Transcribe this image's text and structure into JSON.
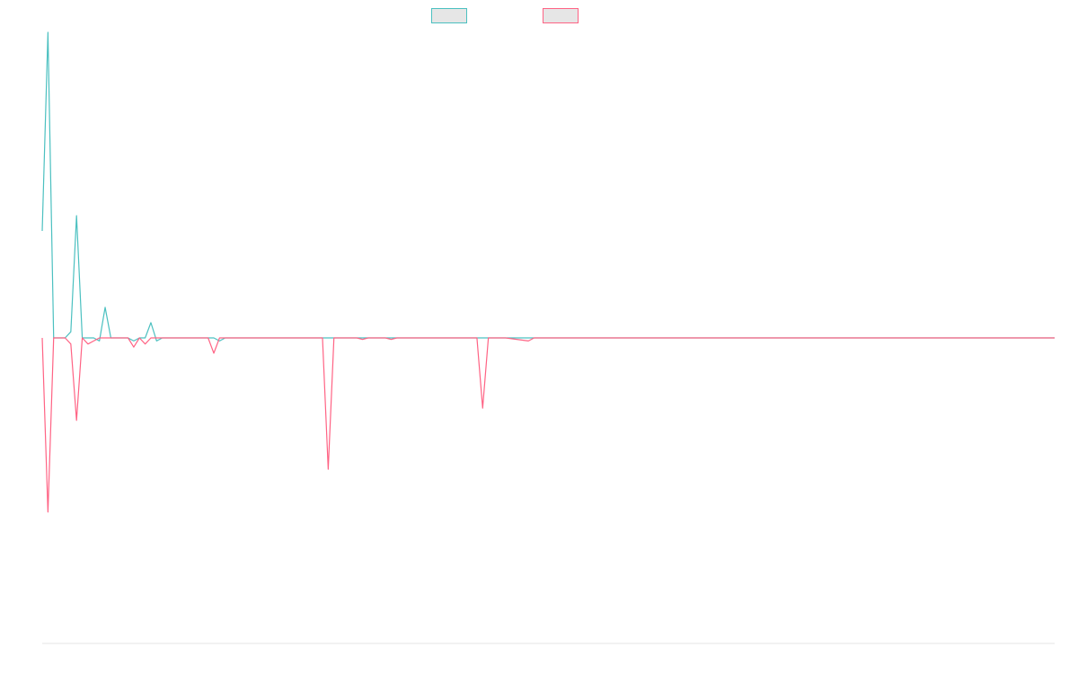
{
  "chart_data": {
    "type": "line",
    "title": "",
    "xlabel": "",
    "ylabel": "",
    "ylim": [
      -100,
      100
    ],
    "x_count": 178,
    "grid": false,
    "legend_position": "top",
    "series": [
      {
        "label": "",
        "color": "#4bc0c0",
        "fill": "#e6e6e6",
        "points": [
          [
            0,
            35
          ],
          [
            1,
            100
          ],
          [
            2,
            0
          ],
          [
            4,
            0
          ],
          [
            5,
            2
          ],
          [
            6,
            40
          ],
          [
            7,
            0
          ],
          [
            9,
            0
          ],
          [
            10,
            -1
          ],
          [
            11,
            10
          ],
          [
            12,
            0
          ],
          [
            15,
            0
          ],
          [
            16,
            -1
          ],
          [
            17,
            0
          ],
          [
            18,
            0
          ],
          [
            19,
            5
          ],
          [
            20,
            -1
          ],
          [
            21,
            0
          ],
          [
            22,
            0
          ],
          [
            23,
            0
          ],
          [
            29,
            0
          ],
          [
            30,
            0
          ],
          [
            31,
            -1
          ],
          [
            32,
            0
          ],
          [
            33,
            0
          ],
          [
            34,
            0
          ],
          [
            35,
            0
          ],
          [
            36,
            0
          ],
          [
            37,
            0
          ],
          [
            38,
            0
          ],
          [
            39,
            0
          ],
          [
            40,
            0
          ],
          [
            41,
            0
          ],
          [
            42,
            0
          ],
          [
            43,
            0
          ],
          [
            44,
            0
          ],
          [
            45,
            0
          ],
          [
            46,
            0
          ],
          [
            47,
            0
          ],
          [
            48,
            0
          ],
          [
            49,
            0
          ],
          [
            50,
            0
          ],
          [
            51,
            0
          ],
          [
            52,
            0
          ],
          [
            53,
            0
          ],
          [
            54,
            0
          ],
          [
            55,
            0
          ],
          [
            56,
            0
          ],
          [
            57,
            0
          ],
          [
            58,
            0
          ],
          [
            59,
            0
          ],
          [
            60,
            0
          ],
          [
            61,
            0
          ],
          [
            62,
            0
          ],
          [
            63,
            0
          ],
          [
            64,
            0
          ],
          [
            65,
            0
          ],
          [
            66,
            0
          ],
          [
            67,
            0
          ],
          [
            68,
            0
          ],
          [
            69,
            0
          ],
          [
            70,
            0
          ],
          [
            71,
            0
          ],
          [
            72,
            0
          ],
          [
            73,
            0
          ],
          [
            74,
            0
          ],
          [
            75,
            0
          ],
          [
            76,
            0
          ],
          [
            77,
            0
          ],
          [
            78,
            0
          ],
          [
            79,
            0
          ],
          [
            80,
            0
          ],
          [
            81,
            0
          ],
          [
            82,
            0
          ],
          [
            83,
            0
          ],
          [
            84,
            0
          ],
          [
            85,
            0
          ],
          [
            86,
            0
          ],
          [
            87,
            0
          ],
          [
            88,
            0
          ],
          [
            89,
            0
          ],
          [
            90,
            0
          ],
          [
            91,
            0
          ],
          [
            92,
            0
          ],
          [
            93,
            0
          ],
          [
            94,
            0
          ],
          [
            95,
            0
          ],
          [
            96,
            0
          ],
          [
            97,
            0
          ],
          [
            98,
            0
          ],
          [
            99,
            0
          ],
          [
            100,
            0
          ],
          [
            101,
            0
          ],
          [
            102,
            0
          ],
          [
            103,
            0
          ],
          [
            104,
            0
          ],
          [
            105,
            0
          ],
          [
            106,
            0
          ],
          [
            107,
            0
          ],
          [
            108,
            0
          ],
          [
            109,
            0
          ],
          [
            110,
            0
          ],
          [
            111,
            0
          ],
          [
            112,
            0
          ],
          [
            113,
            0
          ],
          [
            114,
            0
          ],
          [
            115,
            0
          ],
          [
            116,
            0
          ],
          [
            117,
            0
          ],
          [
            118,
            0
          ],
          [
            119,
            0
          ],
          [
            120,
            0
          ],
          [
            121,
            0
          ],
          [
            122,
            0
          ],
          [
            123,
            0
          ],
          [
            124,
            0
          ],
          [
            125,
            0
          ],
          [
            126,
            0
          ],
          [
            127,
            0
          ],
          [
            128,
            0
          ],
          [
            129,
            0
          ],
          [
            130,
            0
          ],
          [
            131,
            0
          ],
          [
            132,
            0
          ],
          [
            133,
            0
          ],
          [
            134,
            0
          ],
          [
            135,
            0
          ],
          [
            136,
            0
          ],
          [
            137,
            0
          ],
          [
            138,
            0
          ],
          [
            139,
            0
          ],
          [
            140,
            0
          ],
          [
            141,
            0
          ],
          [
            142,
            0
          ],
          [
            143,
            0
          ],
          [
            144,
            0
          ],
          [
            145,
            0
          ],
          [
            146,
            0
          ],
          [
            147,
            0
          ],
          [
            148,
            0
          ],
          [
            149,
            0
          ],
          [
            150,
            0
          ],
          [
            151,
            0
          ],
          [
            152,
            0
          ],
          [
            153,
            0
          ],
          [
            154,
            0
          ],
          [
            155,
            0
          ],
          [
            156,
            0
          ],
          [
            157,
            0
          ],
          [
            158,
            0
          ],
          [
            159,
            0
          ],
          [
            160,
            0
          ],
          [
            161,
            0
          ],
          [
            162,
            0
          ],
          [
            163,
            0
          ],
          [
            164,
            0
          ],
          [
            165,
            0
          ],
          [
            166,
            0
          ],
          [
            167,
            0
          ],
          [
            168,
            0
          ],
          [
            169,
            0
          ],
          [
            170,
            0
          ],
          [
            171,
            0
          ],
          [
            172,
            0
          ],
          [
            173,
            0
          ],
          [
            174,
            0
          ],
          [
            175,
            0
          ],
          [
            176,
            0
          ],
          [
            177,
            0
          ]
        ]
      },
      {
        "label": "",
        "color": "#ff6384",
        "fill": "#e6e6e6",
        "points": [
          [
            0,
            0
          ],
          [
            1,
            -57
          ],
          [
            2,
            0
          ],
          [
            4,
            0
          ],
          [
            5,
            -2
          ],
          [
            6,
            -27
          ],
          [
            7,
            0
          ],
          [
            8,
            -2
          ],
          [
            9,
            -1
          ],
          [
            10,
            0
          ],
          [
            15,
            0
          ],
          [
            16,
            -3
          ],
          [
            17,
            0
          ],
          [
            18,
            -2
          ],
          [
            19,
            0
          ],
          [
            22,
            0
          ],
          [
            23,
            0
          ],
          [
            29,
            0
          ],
          [
            30,
            -5
          ],
          [
            31,
            0
          ],
          [
            49,
            0
          ],
          [
            50,
            -43
          ],
          [
            51,
            0
          ],
          [
            55,
            0
          ],
          [
            56,
            -0.5
          ],
          [
            57,
            0
          ],
          [
            58,
            0
          ],
          [
            59,
            0
          ],
          [
            60,
            0
          ],
          [
            61,
            -0.5
          ],
          [
            62,
            0
          ],
          [
            63,
            0
          ],
          [
            64,
            0
          ],
          [
            65,
            0
          ],
          [
            66,
            0
          ],
          [
            67,
            0
          ],
          [
            68,
            0
          ],
          [
            69,
            0
          ],
          [
            70,
            0
          ],
          [
            71,
            0
          ],
          [
            72,
            0
          ],
          [
            73,
            0
          ],
          [
            74,
            0
          ],
          [
            75,
            0
          ],
          [
            76,
            0
          ],
          [
            77,
            -23
          ],
          [
            78,
            0
          ],
          [
            81,
            0
          ],
          [
            85,
            -1
          ],
          [
            86,
            0
          ],
          [
            91,
            0
          ],
          [
            92,
            0
          ],
          [
            97,
            0
          ],
          [
            98,
            0
          ],
          [
            99,
            0
          ],
          [
            100,
            0
          ],
          [
            101,
            0
          ],
          [
            102,
            0
          ],
          [
            103,
            0
          ],
          [
            104,
            0
          ],
          [
            105,
            0
          ],
          [
            106,
            0
          ],
          [
            107,
            0
          ],
          [
            108,
            0
          ],
          [
            109,
            0
          ],
          [
            110,
            0
          ],
          [
            111,
            0
          ],
          [
            112,
            0
          ],
          [
            113,
            0
          ],
          [
            114,
            0
          ],
          [
            115,
            0
          ],
          [
            116,
            0
          ],
          [
            117,
            0
          ],
          [
            118,
            0
          ],
          [
            119,
            0
          ],
          [
            120,
            0
          ],
          [
            121,
            0
          ],
          [
            122,
            0
          ],
          [
            123,
            0
          ],
          [
            124,
            0
          ],
          [
            125,
            0
          ],
          [
            126,
            0
          ],
          [
            127,
            0
          ],
          [
            128,
            0
          ],
          [
            129,
            0
          ],
          [
            130,
            0
          ],
          [
            131,
            0
          ],
          [
            132,
            0
          ],
          [
            133,
            0
          ],
          [
            134,
            0
          ],
          [
            135,
            0
          ],
          [
            136,
            0
          ],
          [
            137,
            0
          ],
          [
            138,
            0
          ],
          [
            139,
            0
          ],
          [
            140,
            0
          ],
          [
            141,
            0
          ],
          [
            142,
            0
          ],
          [
            143,
            0
          ],
          [
            144,
            0
          ],
          [
            145,
            0
          ],
          [
            146,
            0
          ],
          [
            147,
            0
          ],
          [
            148,
            0
          ],
          [
            149,
            0
          ],
          [
            150,
            0
          ],
          [
            151,
            0
          ],
          [
            152,
            0
          ],
          [
            153,
            0
          ],
          [
            154,
            0
          ],
          [
            155,
            0
          ],
          [
            156,
            0
          ],
          [
            157,
            0
          ],
          [
            158,
            0
          ],
          [
            159,
            0
          ],
          [
            160,
            0
          ],
          [
            161,
            0
          ],
          [
            162,
            0
          ],
          [
            163,
            0
          ],
          [
            164,
            0
          ],
          [
            165,
            0
          ],
          [
            166,
            0
          ],
          [
            167,
            0
          ],
          [
            168,
            0
          ],
          [
            169,
            0
          ],
          [
            170,
            0
          ],
          [
            171,
            0
          ],
          [
            172,
            0
          ],
          [
            173,
            0
          ],
          [
            174,
            0
          ],
          [
            175,
            0
          ],
          [
            176,
            0
          ],
          [
            177,
            0
          ]
        ]
      }
    ]
  }
}
